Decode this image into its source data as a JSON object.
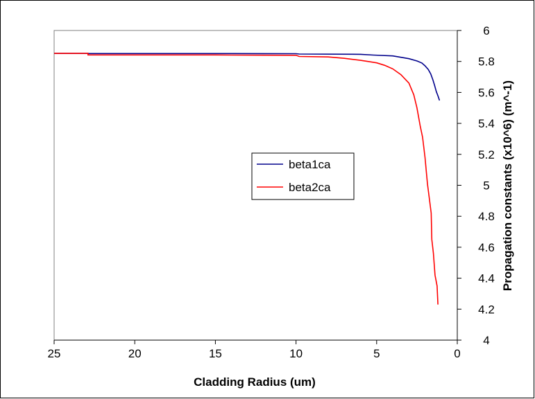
{
  "chart_data": {
    "type": "line",
    "title": "",
    "xlabel": "Cladding Radius (um)",
    "ylabel": "Propagation constants (x10^6) (m^-1)",
    "xlim": [
      0,
      25
    ],
    "x_reversed": true,
    "ylim": [
      4,
      6
    ],
    "x_ticks": [
      "25",
      "20",
      "15",
      "10",
      "5",
      "0"
    ],
    "y_ticks": [
      "6",
      "5.8",
      "5.6",
      "5.4",
      "5.2",
      "5",
      "4.8",
      "4.6",
      "4.4",
      "4.2",
      "4"
    ],
    "y_axis_side": "right",
    "grid": false,
    "legend_position": "center",
    "series": [
      {
        "name": "beta1ca",
        "color": "#00008B",
        "points": [
          [
            25,
            5.852
          ],
          [
            22.9,
            5.852
          ],
          [
            22.9,
            5.851
          ],
          [
            20,
            5.851
          ],
          [
            15,
            5.851
          ],
          [
            14,
            5.851
          ],
          [
            10,
            5.85
          ],
          [
            9.8,
            5.848
          ],
          [
            6,
            5.846
          ],
          [
            5.2,
            5.841
          ],
          [
            4,
            5.836
          ],
          [
            3.5,
            5.827
          ],
          [
            3.0,
            5.818
          ],
          [
            2.5,
            5.803
          ],
          [
            2.2,
            5.79
          ],
          [
            2.0,
            5.772
          ],
          [
            1.8,
            5.748
          ],
          [
            1.65,
            5.72
          ],
          [
            1.5,
            5.678
          ],
          [
            1.4,
            5.642
          ],
          [
            1.3,
            5.605
          ],
          [
            1.2,
            5.578
          ],
          [
            1.1,
            5.548
          ]
        ]
      },
      {
        "name": "beta2ca",
        "color": "#FF0000",
        "points": [
          [
            25,
            5.852
          ],
          [
            22.9,
            5.852
          ],
          [
            22.9,
            5.842
          ],
          [
            15,
            5.842
          ],
          [
            14,
            5.841
          ],
          [
            10,
            5.84
          ],
          [
            9.8,
            5.832
          ],
          [
            8,
            5.829
          ],
          [
            7,
            5.82
          ],
          [
            6,
            5.807
          ],
          [
            5,
            5.791
          ],
          [
            4.5,
            5.775
          ],
          [
            4,
            5.752
          ],
          [
            3.5,
            5.715
          ],
          [
            3.0,
            5.66
          ],
          [
            2.7,
            5.585
          ],
          [
            2.5,
            5.5
          ],
          [
            2.3,
            5.385
          ],
          [
            2.15,
            5.31
          ],
          [
            2.0,
            5.18
          ],
          [
            1.85,
            5.01
          ],
          [
            1.72,
            4.905
          ],
          [
            1.62,
            4.82
          ],
          [
            1.58,
            4.65
          ],
          [
            1.48,
            4.56
          ],
          [
            1.38,
            4.42
          ],
          [
            1.25,
            4.35
          ],
          [
            1.2,
            4.23
          ]
        ]
      }
    ]
  }
}
